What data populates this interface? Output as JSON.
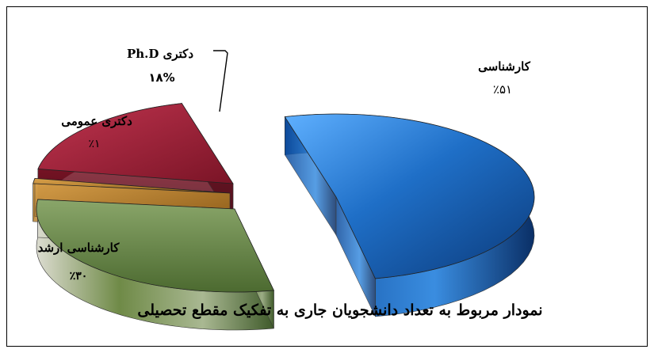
{
  "chart_data": {
    "type": "pie",
    "style": "3d-exploded",
    "title": "نمودار مربوط به تعداد دانشجویان جاری به تفکیک مقطع تحصیلی",
    "slices": [
      {
        "name": "کارشناسی",
        "value": 51,
        "value_label": "٪۵۱",
        "color": "#2a6fb5"
      },
      {
        "name": "کارشناسی ارشد",
        "value": 30,
        "value_label": "٪۳۰",
        "color": "#6f8a47"
      },
      {
        "name": "دکتری عمومی",
        "value": 1,
        "value_label": "٪۱",
        "color": "#b07a23"
      },
      {
        "name": "دکتری Ph.D",
        "value": 18,
        "value_label": "۱۸%",
        "color": "#a3213a"
      }
    ]
  }
}
